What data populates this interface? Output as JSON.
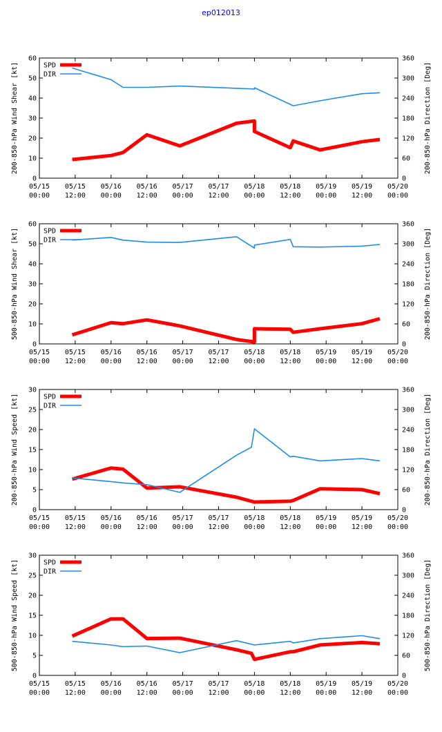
{
  "title": "ep012013",
  "colors": {
    "spd": "#ff0000",
    "dir": "#1e8ce6",
    "title": "#0000ff",
    "axis": "#000000"
  },
  "chart_data": [
    {
      "type": "line",
      "ylabel_left": "200-850-hPa Wind Shear [kt]",
      "ylabel_right": "200-850-hPa Direction [Deg]",
      "ylim_left": [
        0,
        60
      ],
      "ylim_right": [
        0,
        360
      ],
      "yticks_left": [
        "0",
        "10",
        "20",
        "30",
        "40",
        "50",
        "60"
      ],
      "yticks_right": [
        "0",
        "60",
        "120",
        "180",
        "240",
        "300",
        "360"
      ],
      "x_range": [
        0,
        120
      ],
      "x_ticks": [
        {
          "date": "05/15",
          "time": "00:00"
        },
        {
          "date": "05/15",
          "time": "12:00"
        },
        {
          "date": "05/16",
          "time": "00:00"
        },
        {
          "date": "05/16",
          "time": "12:00"
        },
        {
          "date": "05/17",
          "time": "00:00"
        },
        {
          "date": "05/17",
          "time": "12:00"
        },
        {
          "date": "05/18",
          "time": "00:00"
        },
        {
          "date": "05/18",
          "time": "12:00"
        },
        {
          "date": "05/19",
          "time": "00:00"
        },
        {
          "date": "05/19",
          "time": "12:00"
        },
        {
          "date": "05/20",
          "time": "00:00"
        }
      ],
      "legend": [
        "SPD",
        "DIR"
      ],
      "series": [
        {
          "name": "SPD",
          "axis": "left",
          "x": [
            11,
            24,
            28,
            36,
            47,
            66,
            72,
            72,
            84,
            85,
            94,
            108,
            114
          ],
          "values": [
            9.3,
            11.3,
            12.8,
            21.7,
            16.1,
            27.4,
            28.6,
            23.3,
            15.2,
            18.6,
            14.1,
            18.2,
            19.3
          ]
        },
        {
          "name": "DIR",
          "axis": "right",
          "x": [
            11,
            24,
            28,
            36,
            47,
            72,
            72,
            85,
            94,
            108,
            114
          ],
          "values": [
            330,
            295,
            272,
            272,
            276,
            267,
            271,
            217,
            232,
            253,
            256
          ]
        }
      ]
    },
    {
      "type": "line",
      "ylabel_left": "500-850-hPa Wind Shear [kt]",
      "ylabel_right": "200-850-hPa Direction [Deg]",
      "ylim_left": [
        0,
        60
      ],
      "ylim_right": [
        0,
        360
      ],
      "yticks_left": [
        "0",
        "10",
        "20",
        "30",
        "40",
        "50",
        "60"
      ],
      "yticks_right": [
        "0",
        "60",
        "120",
        "180",
        "240",
        "300",
        "360"
      ],
      "x_range": [
        0,
        120
      ],
      "x_ticks": [
        {
          "date": "05/15",
          "time": "00:00"
        },
        {
          "date": "05/15",
          "time": "12:00"
        },
        {
          "date": "05/16",
          "time": "00:00"
        },
        {
          "date": "05/16",
          "time": "12:00"
        },
        {
          "date": "05/17",
          "time": "00:00"
        },
        {
          "date": "05/17",
          "time": "12:00"
        },
        {
          "date": "05/18",
          "time": "00:00"
        },
        {
          "date": "05/18",
          "time": "12:00"
        },
        {
          "date": "05/19",
          "time": "00:00"
        },
        {
          "date": "05/19",
          "time": "12:00"
        },
        {
          "date": "05/20",
          "time": "00:00"
        }
      ],
      "legend": [
        "SPD",
        "DIR"
      ],
      "series": [
        {
          "name": "SPD",
          "axis": "left",
          "x": [
            11,
            24,
            28,
            36,
            47,
            66,
            72,
            72,
            84,
            85,
            94,
            108,
            114
          ],
          "values": [
            4.5,
            10.6,
            10.1,
            12.0,
            9.0,
            2.2,
            1.0,
            7.6,
            7.3,
            5.8,
            7.6,
            10.1,
            12.6
          ]
        },
        {
          "name": "DIR",
          "axis": "right",
          "x": [
            11,
            24,
            28,
            36,
            47,
            66,
            72,
            72,
            84,
            85,
            94,
            108,
            114
          ],
          "values": [
            311,
            319,
            311,
            305,
            304,
            321,
            287,
            296,
            313,
            291,
            290,
            293,
            298
          ]
        }
      ]
    },
    {
      "type": "line",
      "ylabel_left": "200-850-hPa Wind Speed [kt]",
      "ylabel_right": "200-850-hPa Direction [Deg]",
      "ylim_left": [
        0,
        30
      ],
      "ylim_right": [
        0,
        360
      ],
      "yticks_left": [
        "0",
        "5",
        "10",
        "15",
        "20",
        "25",
        "30"
      ],
      "yticks_right": [
        "0",
        "60",
        "120",
        "180",
        "240",
        "300",
        "360"
      ],
      "x_range": [
        0,
        120
      ],
      "x_ticks": [
        {
          "date": "05/15",
          "time": "00:00"
        },
        {
          "date": "05/15",
          "time": "12:00"
        },
        {
          "date": "05/16",
          "time": "00:00"
        },
        {
          "date": "05/16",
          "time": "12:00"
        },
        {
          "date": "05/17",
          "time": "00:00"
        },
        {
          "date": "05/17",
          "time": "12:00"
        },
        {
          "date": "05/18",
          "time": "00:00"
        },
        {
          "date": "05/18",
          "time": "12:00"
        },
        {
          "date": "05/19",
          "time": "00:00"
        },
        {
          "date": "05/19",
          "time": "12:00"
        },
        {
          "date": "05/20",
          "time": "00:00"
        }
      ],
      "legend": [
        "SPD",
        "DIR"
      ],
      "series": [
        {
          "name": "SPD",
          "axis": "left",
          "x": [
            11,
            24,
            28,
            36,
            47,
            66,
            72,
            84,
            85,
            94,
            108,
            114
          ],
          "values": [
            7.6,
            10.4,
            10.1,
            5.4,
            5.7,
            3.1,
            1.9,
            2.1,
            2.3,
            5.2,
            5.0,
            4.0
          ]
        },
        {
          "name": "DIR",
          "axis": "right",
          "x": [
            11,
            24,
            28,
            36,
            47,
            66,
            71,
            72,
            84,
            85,
            94,
            108,
            114
          ],
          "values": [
            95,
            84,
            80,
            75,
            52,
            163,
            187,
            242,
            158,
            160,
            146,
            153,
            146
          ]
        }
      ]
    },
    {
      "type": "line",
      "ylabel_left": "500-850-hPa Wind Speed [kt]",
      "ylabel_right": "500-850-hPa Direction [Deg]",
      "ylim_left": [
        0,
        30
      ],
      "ylim_right": [
        0,
        360
      ],
      "yticks_left": [
        "0",
        "5",
        "10",
        "15",
        "20",
        "25",
        "30"
      ],
      "yticks_right": [
        "0",
        "60",
        "120",
        "180",
        "240",
        "300",
        "360"
      ],
      "x_range": [
        0,
        120
      ],
      "x_ticks": [
        {
          "date": "05/15",
          "time": "00:00"
        },
        {
          "date": "05/15",
          "time": "12:00"
        },
        {
          "date": "05/16",
          "time": "00:00"
        },
        {
          "date": "05/16",
          "time": "12:00"
        },
        {
          "date": "05/17",
          "time": "00:00"
        },
        {
          "date": "05/17",
          "time": "12:00"
        },
        {
          "date": "05/18",
          "time": "00:00"
        },
        {
          "date": "05/18",
          "time": "12:00"
        },
        {
          "date": "05/19",
          "time": "00:00"
        },
        {
          "date": "05/19",
          "time": "12:00"
        },
        {
          "date": "05/20",
          "time": "00:00"
        }
      ],
      "legend": [
        "SPD",
        "DIR"
      ],
      "series": [
        {
          "name": "SPD",
          "axis": "left",
          "x": [
            11,
            24,
            28,
            36,
            47,
            66,
            71,
            72,
            84,
            85,
            94,
            108,
            114
          ],
          "values": [
            9.8,
            14.1,
            14.1,
            9.2,
            9.3,
            6.4,
            5.5,
            4.0,
            5.9,
            5.9,
            7.6,
            8.2,
            7.9
          ]
        },
        {
          "name": "DIR",
          "axis": "right",
          "x": [
            11,
            24,
            28,
            36,
            47,
            66,
            72,
            84,
            85,
            94,
            108,
            114
          ],
          "values": [
            102,
            91,
            86,
            88,
            68,
            104,
            91,
            102,
            97,
            110,
            119,
            110
          ]
        }
      ]
    }
  ]
}
